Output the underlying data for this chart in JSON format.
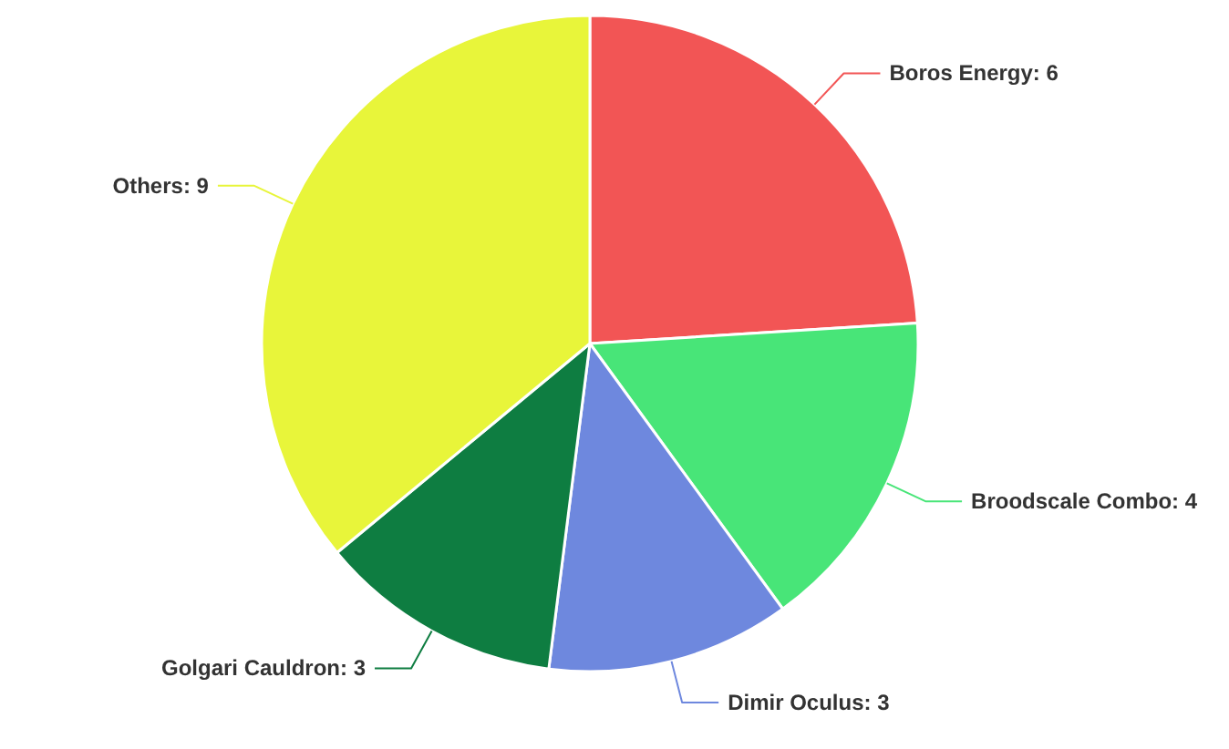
{
  "chart_data": {
    "type": "pie",
    "categories": [
      "Boros Energy",
      "Broodscale Combo",
      "Dimir Oculus",
      "Golgari Cauldron",
      "Others"
    ],
    "values": [
      6,
      4,
      3,
      3,
      9
    ],
    "colors": [
      "#f25555",
      "#48e578",
      "#6e88de",
      "#0e7d41",
      "#e8f53a"
    ],
    "value_labels": [
      ": 6",
      ": 4",
      ": 3",
      ": 3",
      ": 9"
    ],
    "legend": false
  }
}
